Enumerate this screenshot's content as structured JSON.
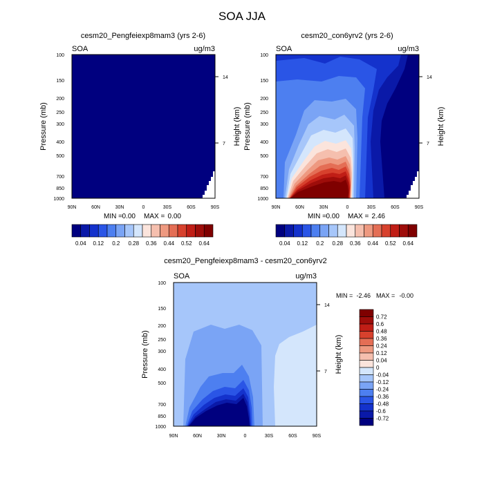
{
  "figure_title": "SOA JJA",
  "chart_data": [
    {
      "type": "contour",
      "title": "cesm20_Pengfeiexp8mam3 (yrs 2-6)",
      "left_string": "SOA",
      "right_string": "ug/m3",
      "xlabel": "",
      "ylabel": "Pressure (mb)",
      "ylabel_right": "Height (km)",
      "x_ticks": [
        "90N",
        "60N",
        "30N",
        "0",
        "30S",
        "60S",
        "90S"
      ],
      "y_ticks": [
        "100",
        "150",
        "200",
        "250",
        "300",
        "400",
        "500",
        "700",
        "850",
        "1000"
      ],
      "y_ticks_right": [
        "14",
        "7"
      ],
      "stats": {
        "min_label": "MIN =",
        "min": "0.00",
        "max_label": "MAX =",
        "max": "0.00"
      },
      "fill_levels": [
        0
      ]
    },
    {
      "type": "contour",
      "title": "cesm20_con6yrv2 (yrs 2-6)",
      "left_string": "SOA",
      "right_string": "ug/m3",
      "ylabel": "Pressure (mb)",
      "ylabel_right": "Height (km)",
      "x_ticks": [
        "90N",
        "60N",
        "30N",
        "0",
        "30S",
        "60S",
        "90S"
      ],
      "y_ticks": [
        "100",
        "150",
        "200",
        "250",
        "300",
        "400",
        "500",
        "700",
        "850",
        "1000"
      ],
      "y_ticks_right": [
        "14",
        "7"
      ],
      "stats": {
        "min_label": "MIN =",
        "min": "0.00",
        "max_label": "MAX =",
        "max": "2.46"
      },
      "fill_levels": [
        0,
        1,
        2,
        3,
        4,
        5,
        6,
        7,
        8,
        9,
        10,
        11,
        12,
        13,
        14,
        15
      ]
    },
    {
      "type": "contour",
      "title": "cesm20_Pengfeiexp8mam3 - cesm20_con6yrv2",
      "left_string": "SOA",
      "right_string": "ug/m3",
      "ylabel": "Pressure (mb)",
      "ylabel_right": "Height (km)",
      "x_ticks": [
        "90N",
        "60N",
        "30N",
        "0",
        "30S",
        "60S",
        "90S"
      ],
      "y_ticks": [
        "100",
        "150",
        "200",
        "250",
        "300",
        "400",
        "500",
        "700",
        "850",
        "1000"
      ],
      "y_ticks_right": [
        "14",
        "7"
      ],
      "stats": {
        "min_label": "MIN =",
        "min": "-2.46",
        "max_label": "MAX =",
        "max": "-0.00"
      },
      "fill_levels": [
        0,
        1,
        2,
        3,
        4,
        5,
        6,
        7,
        8
      ]
    }
  ],
  "colorbar_abs": {
    "colors": [
      "#00007f",
      "#0a19a8",
      "#1432cc",
      "#2a55e6",
      "#4d7ff0",
      "#7aa4f5",
      "#a6c6fa",
      "#d4e6fc",
      "#fbe4dc",
      "#f5bfae",
      "#ee9980",
      "#e46e55",
      "#d7412d",
      "#c01e16",
      "#9e0d0a",
      "#7f0000"
    ],
    "labels": [
      "0.04",
      "0.12",
      "0.2",
      "0.28",
      "0.36",
      "0.44",
      "0.52",
      "0.64"
    ]
  },
  "colorbar_diff": {
    "colors": [
      "#00007f",
      "#0a19a8",
      "#1432cc",
      "#2a55e6",
      "#4d7ff0",
      "#7aa4f5",
      "#a6c6fa",
      "#d4e6fc",
      "#fbe4dc",
      "#f5bfae",
      "#ee9980",
      "#e46e55",
      "#d7412d",
      "#c01e16",
      "#9e0d0a",
      "#7f0000"
    ],
    "labels": [
      "0.72",
      "0.6",
      "0.48",
      "0.36",
      "0.24",
      "0.12",
      "0.04",
      "0",
      "-0.04",
      "-0.12",
      "-0.24",
      "-0.36",
      "-0.48",
      "-0.6",
      "-0.72"
    ]
  }
}
